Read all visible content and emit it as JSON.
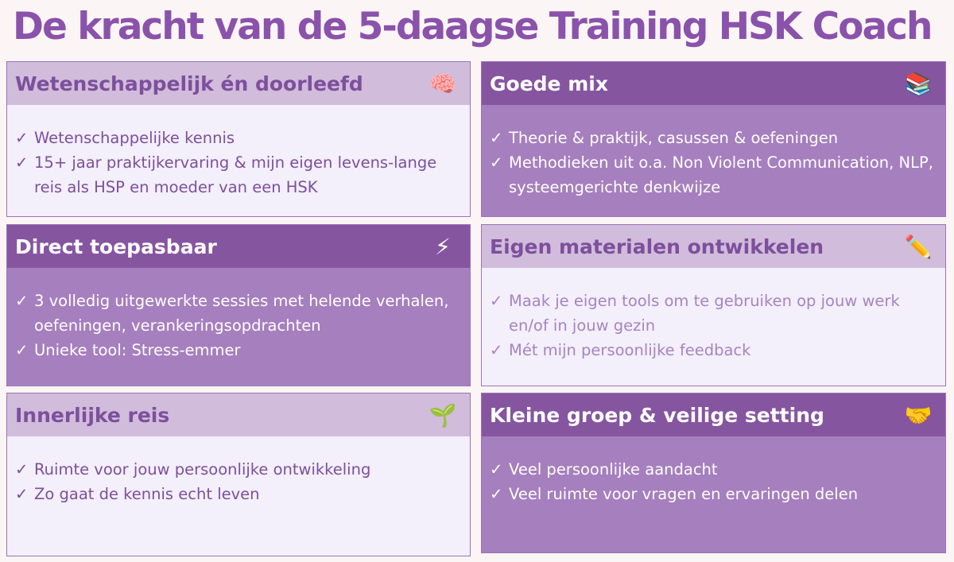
{
  "title": "De kracht van de 5-daagse Training HSK Coach",
  "check_symbol": "✓",
  "boxes": [
    {
      "title": "Wetenschappelijk én doorleefd",
      "icon": "brain-icon",
      "glyph": "🧠",
      "items": [
        "Wetenschappelijke kennis",
        "15+ jaar praktijkervaring & mijn eigen levens-lange reis als HSP en moeder van een HSK"
      ]
    },
    {
      "title": "Goede mix",
      "icon": "books-icon",
      "glyph": "📚",
      "items": [
        "Theorie & praktijk, casussen & oefeningen",
        "Methodieken uit o.a. Non Violent Communication, NLP, systeemgerichte denkwijze"
      ]
    },
    {
      "title": "Direct toepasbaar",
      "icon": "lightning-icon",
      "glyph": "⚡",
      "items": [
        "3 volledig uitgewerkte sessies met helende verhalen, oefeningen, verankeringsopdrachten",
        "Unieke tool: Stress-emmer"
      ]
    },
    {
      "title": "Eigen materialen ontwikkelen",
      "icon": "pencil-icon",
      "glyph": "✏️",
      "items": [
        "Maak je eigen tools om te gebruiken op jouw werk en/of in jouw gezin",
        "Mét mijn persoonlijke feedback"
      ]
    },
    {
      "title": "Innerlijke reis",
      "icon": "seedling-icon",
      "glyph": "🌱",
      "items": [
        "Ruimte voor jouw persoonlijke ontwikkeling",
        "Zo gaat de kennis echt leven"
      ]
    },
    {
      "title": "Kleine groep & veilige setting",
      "icon": "handshake-icon",
      "glyph": "🤝",
      "items": [
        "Veel persoonlijke aandacht",
        "Veel ruimte voor vragen en ervaringen delen"
      ]
    }
  ]
}
